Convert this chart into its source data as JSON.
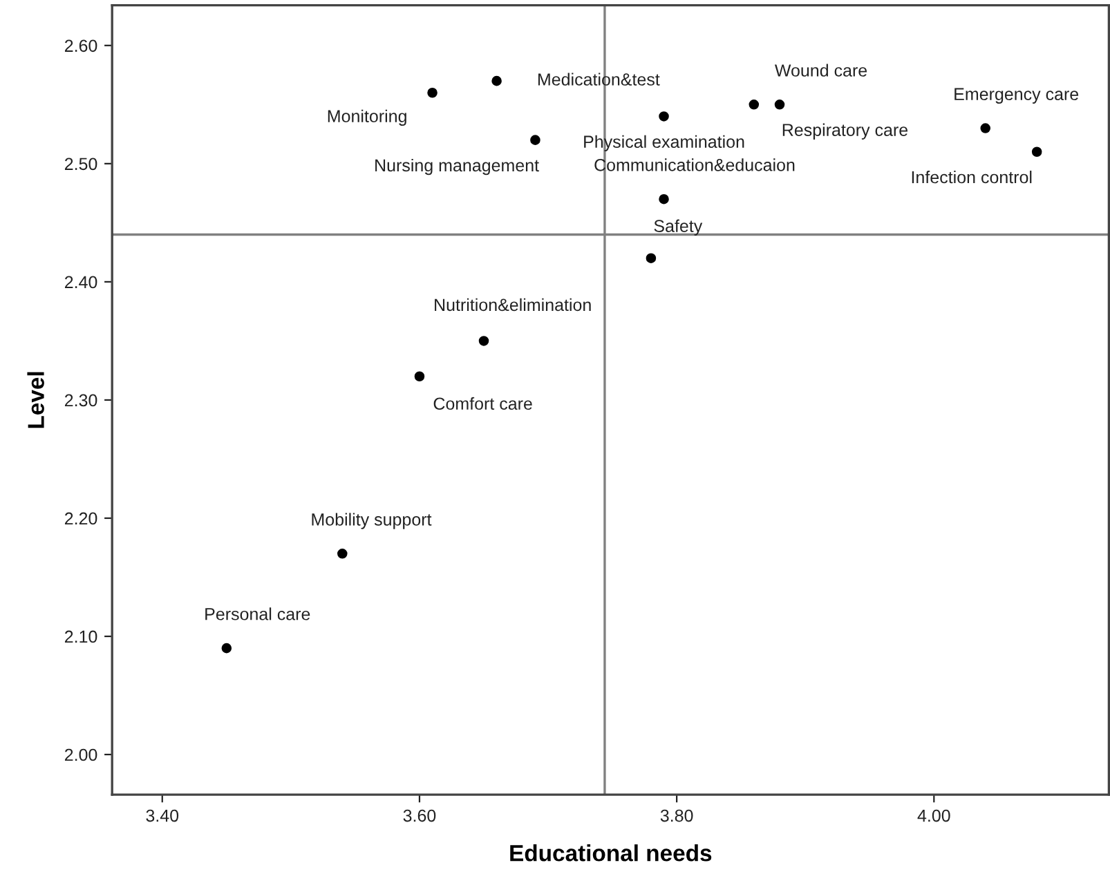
{
  "chart_data": {
    "type": "scatter",
    "xlabel": "Educational needs",
    "ylabel": "Level",
    "x": [
      3.61,
      3.66,
      3.69,
      3.79,
      3.79,
      3.78,
      3.86,
      3.88,
      4.04,
      4.08,
      3.65,
      3.6,
      3.54,
      3.45
    ],
    "series": [
      {
        "color": "#000000",
        "values": [
          2.56,
          2.57,
          2.52,
          2.54,
          2.47,
          2.42,
          2.55,
          2.55,
          2.53,
          2.51,
          2.35,
          2.32,
          2.17,
          2.09
        ]
      }
    ],
    "annotations": [
      {
        "text": "Monitoring",
        "x": 3.61,
        "y": 2.56
      },
      {
        "text": "Medication&test",
        "x": 3.66,
        "y": 2.57
      },
      {
        "text": "Nursing management",
        "x": 3.69,
        "y": 2.52
      },
      {
        "text": "Physical examination",
        "x": 3.79,
        "y": 2.54
      },
      {
        "text": "Communication&educaion",
        "x": 3.79,
        "y": 2.47
      },
      {
        "text": "Safety",
        "x": 3.78,
        "y": 2.42
      },
      {
        "text": "Wound care",
        "x": 3.86,
        "y": 2.55
      },
      {
        "text": "Respiratory care",
        "x": 3.88,
        "y": 2.55
      },
      {
        "text": "Emergency care",
        "x": 4.04,
        "y": 2.53
      },
      {
        "text": "Infection control",
        "x": 4.08,
        "y": 2.51
      },
      {
        "text": "Nutrition&elimination",
        "x": 3.65,
        "y": 2.35
      },
      {
        "text": "Comfort care",
        "x": 3.6,
        "y": 2.32
      },
      {
        "text": "Mobility support",
        "x": 3.54,
        "y": 2.17
      },
      {
        "text": "Personal care",
        "x": 3.45,
        "y": 2.09
      }
    ],
    "ref_lines": [
      {
        "axis": "x",
        "value": 3.744,
        "color": "#808080"
      },
      {
        "axis": "y",
        "value": 2.44,
        "color": "#808080"
      }
    ],
    "xlim": [
      3.361,
      4.136
    ],
    "ylim": [
      1.966,
      2.634
    ],
    "xticks": [
      {
        "value": 3.4,
        "label": "3.40"
      },
      {
        "value": 3.6,
        "label": "3.60"
      },
      {
        "value": 3.8,
        "label": "3.80"
      },
      {
        "value": 4.0,
        "label": "4.00"
      }
    ],
    "yticks": [
      {
        "value": 2.0,
        "label": "2.00"
      },
      {
        "value": 2.1,
        "label": "2.10"
      },
      {
        "value": 2.2,
        "label": "2.20"
      },
      {
        "value": 2.3,
        "label": "2.30"
      },
      {
        "value": 2.4,
        "label": "2.40"
      },
      {
        "value": 2.5,
        "label": "2.50"
      },
      {
        "value": 2.6,
        "label": "2.60"
      }
    ],
    "grid": false,
    "marker": "circle"
  }
}
